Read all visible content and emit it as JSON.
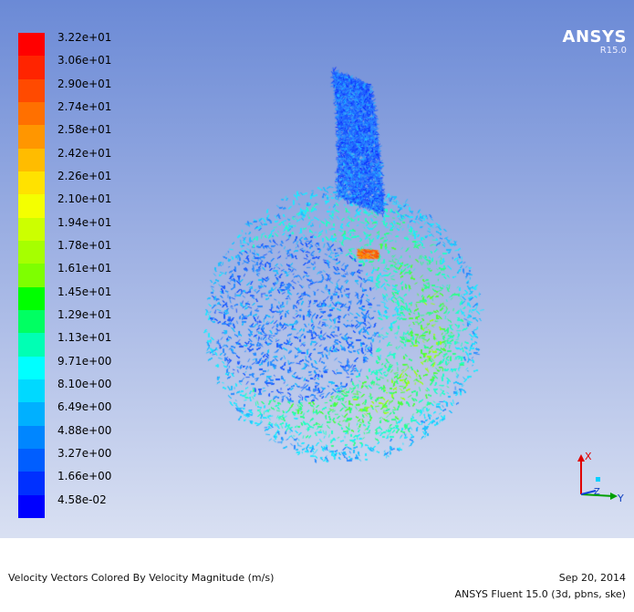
{
  "legend": {
    "labels": [
      "3.22e+01",
      "3.06e+01",
      "2.90e+01",
      "2.74e+01",
      "2.58e+01",
      "2.42e+01",
      "2.26e+01",
      "2.10e+01",
      "1.94e+01",
      "1.78e+01",
      "1.61e+01",
      "1.45e+01",
      "1.29e+01",
      "1.13e+01",
      "9.71e+00",
      "8.10e+00",
      "6.49e+00",
      "4.88e+00",
      "3.27e+00",
      "1.66e+00",
      "4.58e-02"
    ],
    "colors": [
      "#ff0000",
      "#ff2400",
      "#ff4a00",
      "#ff7000",
      "#ff9600",
      "#ffbc00",
      "#ffe200",
      "#f4ff00",
      "#ccff00",
      "#a6ff00",
      "#7eff00",
      "#00ff00",
      "#00ff62",
      "#00ffb4",
      "#00ffff",
      "#00d9ff",
      "#00b0ff",
      "#0086ff",
      "#005eff",
      "#0030ff",
      "#0000ff"
    ]
  },
  "logo": {
    "name": "ANSYS",
    "version": "R15.0"
  },
  "triad": {
    "x_label": "X",
    "y_label": "Y",
    "z_label": "Z"
  },
  "footer": {
    "caption": "Velocity Vectors Colored By Velocity Magnitude (m/s)",
    "date": "Sep 20, 2014",
    "solver": "ANSYS Fluent 15.0 (3d, pbns, ske)"
  }
}
